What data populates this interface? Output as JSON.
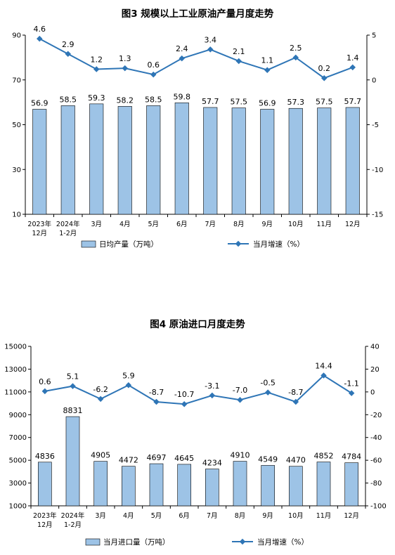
{
  "chart_data": [
    {
      "type": "bar",
      "title": "图3  规模以上工业原油产量月度走势",
      "categories": [
        "2023年\n12月",
        "2024年\n1-2月",
        "3月",
        "4月",
        "5月",
        "6月",
        "7月",
        "8月",
        "9月",
        "10月",
        "11月",
        "12月"
      ],
      "series": [
        {
          "name": "日均产量（万吨）",
          "type": "bar",
          "axis": "left",
          "values": [
            56.9,
            58.5,
            59.3,
            58.2,
            58.5,
            59.8,
            57.7,
            57.5,
            56.9,
            57.3,
            57.5,
            57.7
          ]
        },
        {
          "name": "当月增速（%）",
          "type": "line",
          "axis": "right",
          "values": [
            4.6,
            2.9,
            1.2,
            1.3,
            0.6,
            2.4,
            3.4,
            2.1,
            1.1,
            2.5,
            0.2,
            1.4
          ]
        }
      ],
      "ylim_left": [
        10,
        90
      ],
      "yticks_left": [
        10,
        30,
        50,
        70,
        90
      ],
      "ylim_right": [
        -15,
        5
      ],
      "yticks_right": [
        -15,
        -10,
        -5,
        0,
        5
      ],
      "legend": "bottom",
      "grid": false,
      "colors": {
        "bar": "#9dc3e6",
        "bar_edge": "#000000",
        "line": "#2e75b6"
      }
    },
    {
      "type": "bar",
      "title": "图4  原油进口月度走势",
      "categories": [
        "2023年\n12月",
        "2024年\n1-2月",
        "3月",
        "4月",
        "5月",
        "6月",
        "7月",
        "8月",
        "9月",
        "10月",
        "11月",
        "12月"
      ],
      "series": [
        {
          "name": "当月进口量（万吨）",
          "type": "bar",
          "axis": "left",
          "values": [
            4836,
            8831,
            4905,
            4472,
            4697,
            4645,
            4234,
            4910,
            4549,
            4470,
            4852,
            4784
          ]
        },
        {
          "name": "当月增速（%）",
          "type": "line",
          "axis": "right",
          "values": [
            0.6,
            5.1,
            -6.2,
            5.9,
            -8.7,
            -10.7,
            -3.1,
            -7.0,
            -0.5,
            -8.7,
            14.4,
            -1.1
          ]
        }
      ],
      "ylim_left": [
        1000,
        15000
      ],
      "yticks_left": [
        1000,
        3000,
        5000,
        7000,
        9000,
        11000,
        13000,
        15000
      ],
      "ylim_right": [
        -100,
        40
      ],
      "yticks_right": [
        -100,
        -80,
        -60,
        -40,
        -20,
        0,
        20,
        40
      ],
      "legend": "bottom",
      "grid": false,
      "colors": {
        "bar": "#9dc3e6",
        "bar_edge": "#000000",
        "line": "#2e75b6"
      }
    }
  ]
}
